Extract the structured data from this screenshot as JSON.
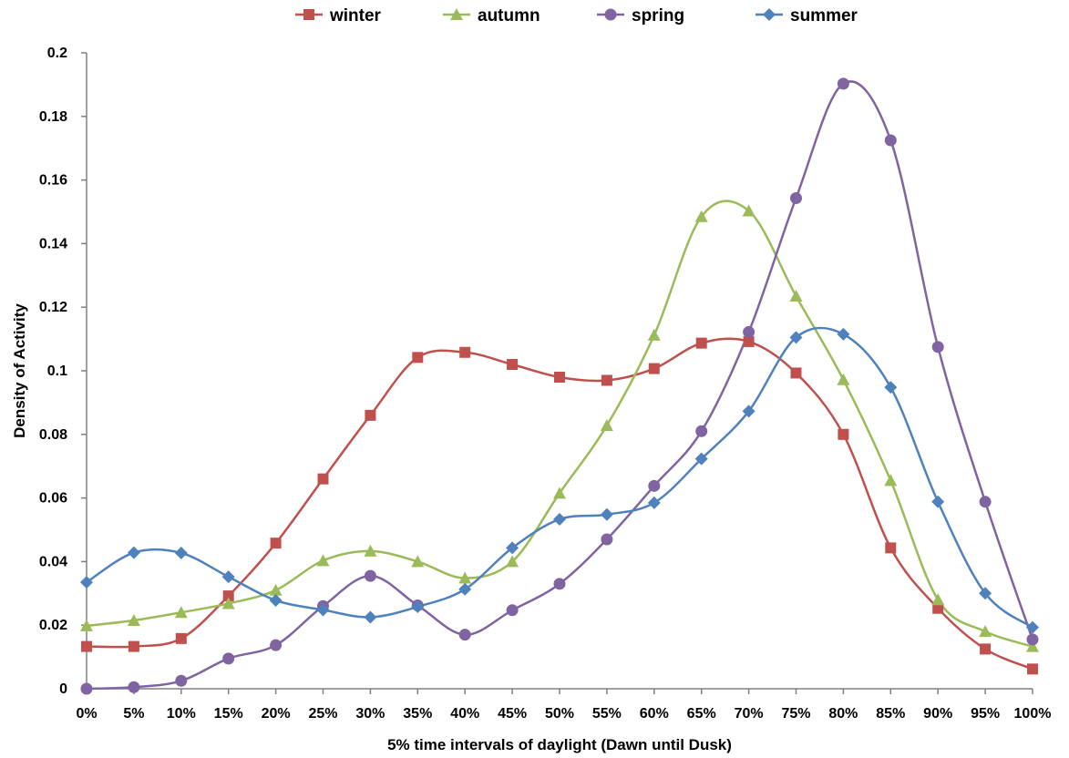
{
  "chart_data": {
    "type": "line",
    "title": "",
    "xlabel": "5% time intervals  of daylight (Dawn until Dusk)",
    "ylabel": "Density of Activity",
    "categories": [
      "0%",
      "5%",
      "10%",
      "15%",
      "20%",
      "25%",
      "30%",
      "35%",
      "40%",
      "45%",
      "50%",
      "55%",
      "60%",
      "65%",
      "70%",
      "75%",
      "80%",
      "85%",
      "90%",
      "95%",
      "100%"
    ],
    "ylim": [
      0,
      0.2
    ],
    "yticks": [
      0,
      0.02,
      0.04,
      0.06,
      0.08,
      0.1,
      0.12,
      0.14,
      0.16,
      0.18,
      0.2
    ],
    "ytick_labels": [
      "0",
      "0.02",
      "0.04",
      "0.06",
      "0.08",
      "0.1",
      "0.12",
      "0.14",
      "0.16",
      "0.18",
      "0.2"
    ],
    "grid": false,
    "legend_position": "top",
    "smooth": true,
    "series": [
      {
        "name": "winter",
        "color": "#C0504D",
        "marker": "square",
        "values": [
          0.0133,
          0.0133,
          0.0158,
          0.0292,
          0.0458,
          0.066,
          0.086,
          0.1042,
          0.1058,
          0.102,
          0.098,
          0.097,
          0.1007,
          0.1087,
          0.1092,
          0.0993,
          0.08,
          0.0443,
          0.0253,
          0.0125,
          0.0062
        ]
      },
      {
        "name": "autumn",
        "color": "#9BBB59",
        "marker": "triangle",
        "values": [
          0.0198,
          0.0215,
          0.024,
          0.0268,
          0.031,
          0.0403,
          0.0433,
          0.04,
          0.0348,
          0.04,
          0.0615,
          0.0828,
          0.1112,
          0.1485,
          0.1503,
          0.1235,
          0.0972,
          0.0655,
          0.028,
          0.018,
          0.0133
        ]
      },
      {
        "name": "spring",
        "color": "#8064A2",
        "marker": "circle",
        "values": [
          0.0,
          0.0005,
          0.0025,
          0.0095,
          0.0137,
          0.026,
          0.0355,
          0.0262,
          0.017,
          0.0247,
          0.033,
          0.047,
          0.0638,
          0.081,
          0.1122,
          0.1543,
          0.1903,
          0.1725,
          0.1075,
          0.0588,
          0.0155
        ]
      },
      {
        "name": "summer",
        "color": "#4F81BD",
        "marker": "diamond",
        "values": [
          0.0335,
          0.0428,
          0.0427,
          0.0352,
          0.0278,
          0.0248,
          0.0225,
          0.0258,
          0.0313,
          0.0443,
          0.0533,
          0.0548,
          0.0585,
          0.0723,
          0.0873,
          0.1105,
          0.1115,
          0.0948,
          0.0588,
          0.03,
          0.0193
        ]
      }
    ]
  }
}
